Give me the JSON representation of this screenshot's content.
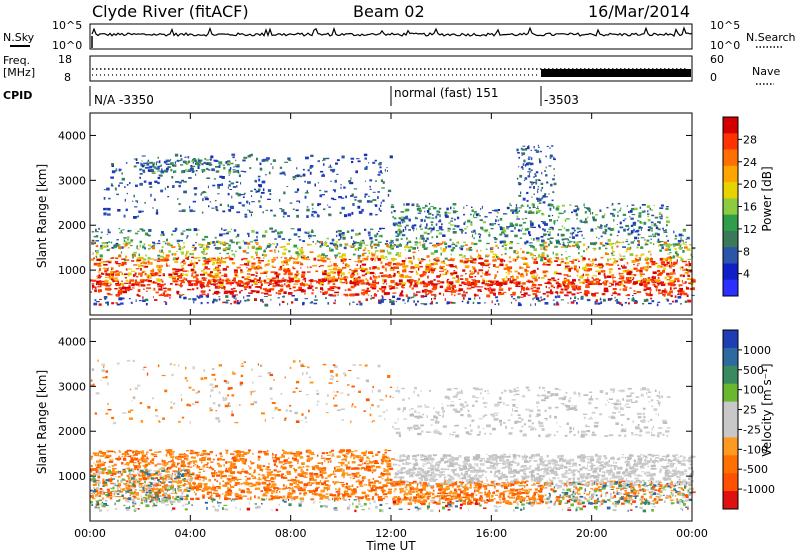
{
  "header": {
    "title": "Clyde River (fitACF)",
    "beam": "Beam 02",
    "date": "16/Mar/2014"
  },
  "left_labels": {
    "nsky": "N.Sky",
    "freq": "Freq.",
    "freq_unit": "[MHz]",
    "cpid": "CPID"
  },
  "right_labels": {
    "nsearch": "N.Search",
    "nave": "Nave"
  },
  "noise_axis": {
    "top": "10^5",
    "bottom": "10^0"
  },
  "freq_axis": {
    "ticks": [
      "18",
      "8"
    ]
  },
  "nave_axis": {
    "ticks": [
      "60",
      "0"
    ]
  },
  "cpid_segments": [
    "N/A -3350",
    "normal (fast) 151",
    "-3503"
  ],
  "colorbars": {
    "power": {
      "label": "Power [dB]",
      "ticks": [
        "28",
        "24",
        "20",
        "16",
        "12",
        "8",
        "4"
      ],
      "colors": [
        "#d40000",
        "#ff3300",
        "#ff7000",
        "#ffa500",
        "#e6d300",
        "#8ccc40",
        "#2e9e4a",
        "#3a7a5a",
        "#2a55a8",
        "#1020c8",
        "#2a30ff"
      ]
    },
    "velocity": {
      "label": "Velocity [m s⁻¹]",
      "ticks": [
        "1000",
        "500",
        "100",
        "25",
        "-25",
        "-100",
        "-500",
        "-1000"
      ],
      "colors": [
        "#1e3fb4",
        "#2e6aa0",
        "#3a8a60",
        "#6ab830",
        "#c8c8c8",
        "#c8c8c8",
        "#ff9a20",
        "#ff7000",
        "#ff5000",
        "#e01010"
      ]
    }
  },
  "chart_data": [
    {
      "type": "line",
      "name": "N.Sky / N.Search noise",
      "ylim": [
        1,
        100000
      ],
      "log_y": true
    },
    {
      "type": "line",
      "name": "Freq / Nave",
      "ylim": [
        8,
        18
      ]
    },
    {
      "type": "heatmap",
      "ylabel": "Slant Range [km]",
      "ylim": [
        0,
        4500
      ],
      "yticks": [
        "4000",
        "3000",
        "2000",
        "1000"
      ],
      "xlim": [
        0,
        24
      ],
      "colorbar": "Power [dB]",
      "value_range": [
        0,
        30
      ]
    },
    {
      "type": "heatmap",
      "ylabel": "Slant Range [km]",
      "ylim": [
        0,
        4500
      ],
      "yticks": [
        "4000",
        "3000",
        "2000",
        "1000"
      ],
      "xlim": [
        0,
        24
      ],
      "xlabel": "Time UT",
      "xticks": [
        "00:00",
        "04:00",
        "08:00",
        "12:00",
        "16:00",
        "20:00",
        "00:00"
      ],
      "colorbar": "Velocity [m s⁻¹]",
      "value_range": [
        -1000,
        1000
      ]
    }
  ]
}
